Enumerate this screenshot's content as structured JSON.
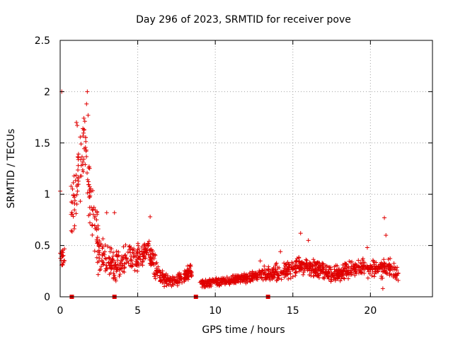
{
  "chart_data": {
    "type": "scatter",
    "title": "Day 296 of 2023, SRMTID for receiver pove",
    "xlabel": "GPS time / hours",
    "ylabel": "SRMTID / TECUs",
    "xlim": [
      0,
      24
    ],
    "ylim": [
      0,
      2.5
    ],
    "x_ticks": [
      0,
      5,
      10,
      15,
      20
    ],
    "y_ticks": [
      0,
      0.5,
      1,
      1.5,
      2,
      2.5
    ],
    "x_tick_labels": [
      "0",
      "5",
      "10",
      "15",
      "20"
    ],
    "y_tick_labels": [
      "0",
      "0.5",
      "1",
      "1.5",
      "2",
      "2.5"
    ],
    "grid": true,
    "marker": "+",
    "color": "#e00000",
    "zero_markers_x": [
      0.75,
      3.5,
      8.75,
      13.4
    ],
    "trend": [
      {
        "x": 0.0,
        "y": 0.4
      },
      {
        "x": 0.2,
        "y": 0.35
      },
      {
        "x": 0.7,
        "y": 0.85
      },
      {
        "x": 1.0,
        "y": 1.0
      },
      {
        "x": 1.3,
        "y": 1.25
      },
      {
        "x": 1.6,
        "y": 1.55
      },
      {
        "x": 1.8,
        "y": 1.1
      },
      {
        "x": 2.1,
        "y": 0.8
      },
      {
        "x": 2.5,
        "y": 0.45
      },
      {
        "x": 3.0,
        "y": 0.35
      },
      {
        "x": 3.5,
        "y": 0.3
      },
      {
        "x": 4.0,
        "y": 0.35
      },
      {
        "x": 4.5,
        "y": 0.4
      },
      {
        "x": 5.0,
        "y": 0.38
      },
      {
        "x": 5.6,
        "y": 0.45
      },
      {
        "x": 6.0,
        "y": 0.35
      },
      {
        "x": 6.4,
        "y": 0.2
      },
      {
        "x": 7.0,
        "y": 0.15
      },
      {
        "x": 7.6,
        "y": 0.18
      },
      {
        "x": 8.0,
        "y": 0.2
      },
      {
        "x": 8.4,
        "y": 0.25
      },
      {
        "x": 9.2,
        "y": 0.12
      },
      {
        "x": 10.0,
        "y": 0.15
      },
      {
        "x": 11.0,
        "y": 0.16
      },
      {
        "x": 12.0,
        "y": 0.18
      },
      {
        "x": 12.8,
        "y": 0.22
      },
      {
        "x": 13.5,
        "y": 0.22
      },
      {
        "x": 14.5,
        "y": 0.25
      },
      {
        "x": 15.5,
        "y": 0.3
      },
      {
        "x": 16.5,
        "y": 0.28
      },
      {
        "x": 17.5,
        "y": 0.22
      },
      {
        "x": 18.5,
        "y": 0.25
      },
      {
        "x": 19.5,
        "y": 0.28
      },
      {
        "x": 20.5,
        "y": 0.27
      },
      {
        "x": 21.3,
        "y": 0.28
      },
      {
        "x": 21.8,
        "y": 0.22
      }
    ],
    "segments": [
      {
        "x": [
          0.0,
          0.3
        ],
        "spread": 0.12
      },
      {
        "x": [
          0.7,
          2.6
        ],
        "spread": 0.32
      },
      {
        "x": [
          2.6,
          3.6
        ],
        "spread": 0.18
      },
      {
        "x": [
          3.6,
          6.2
        ],
        "spread": 0.15
      },
      {
        "x": [
          6.2,
          8.5
        ],
        "spread": 0.08
      },
      {
        "x": [
          9.0,
          13.0
        ],
        "spread": 0.05
      },
      {
        "x": [
          13.0,
          21.8
        ],
        "spread": 0.1
      }
    ],
    "highlights": [
      {
        "x": 0.1,
        "y": 2.0
      },
      {
        "x": 1.75,
        "y": 2.0
      },
      {
        "x": 1.7,
        "y": 1.88
      },
      {
        "x": 1.8,
        "y": 1.77
      },
      {
        "x": 1.1,
        "y": 1.67
      },
      {
        "x": 1.05,
        "y": 1.7
      },
      {
        "x": 0.0,
        "y": 1.03
      },
      {
        "x": 3.0,
        "y": 0.82
      },
      {
        "x": 3.5,
        "y": 0.82
      },
      {
        "x": 5.8,
        "y": 0.78
      },
      {
        "x": 15.5,
        "y": 0.62
      },
      {
        "x": 20.9,
        "y": 0.77
      },
      {
        "x": 21.0,
        "y": 0.6
      },
      {
        "x": 20.8,
        "y": 0.08
      },
      {
        "x": 16.0,
        "y": 0.55
      },
      {
        "x": 19.8,
        "y": 0.48
      },
      {
        "x": 14.2,
        "y": 0.44
      },
      {
        "x": 12.9,
        "y": 0.35
      }
    ]
  }
}
